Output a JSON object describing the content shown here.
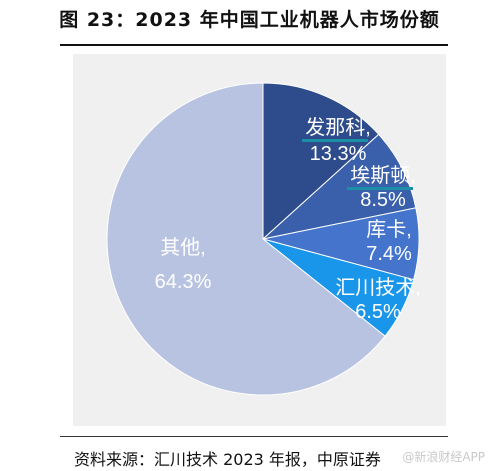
{
  "figure": {
    "title": "图 23：2023 年中国工业机器人市场份额",
    "source": "资料来源：汇川技术 2023 年报，中原证券",
    "watermark": "@新浪财经APP"
  },
  "chart_data": {
    "type": "pie",
    "title": "",
    "start_angle_deg": 0,
    "direction": "clockwise",
    "slices": [
      {
        "name": "发那科",
        "value": 13.3,
        "value_label": "13.3%",
        "color": "#2e4b8c",
        "underline": true
      },
      {
        "name": "埃斯顿",
        "value": 8.5,
        "value_label": "8.5%",
        "color": "#3a5fab",
        "underline": true
      },
      {
        "name": "库卡",
        "value": 7.4,
        "value_label": "7.4%",
        "color": "#4474cc",
        "underline": false
      },
      {
        "name": "汇川技术",
        "value": 6.5,
        "value_label": "6.5%",
        "color": "#1996ea",
        "underline": false
      },
      {
        "name": "其他",
        "value": 64.3,
        "value_label": "64.3%",
        "color": "#b8c3e1",
        "underline": false
      }
    ],
    "underline_color": "#1a8fa6"
  }
}
